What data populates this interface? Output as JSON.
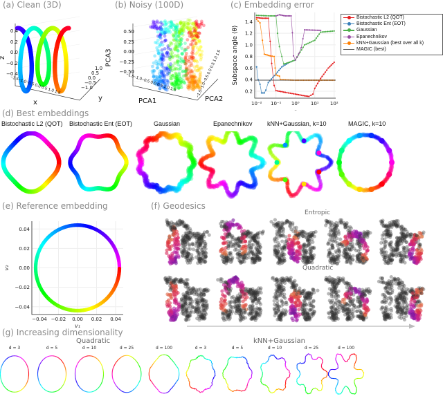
{
  "panels": {
    "a": {
      "title": "(a) Clean (3D)",
      "xlabel": "x",
      "ylabel": "y",
      "zlabel": "z",
      "zticks": [
        "0.4",
        "0.2",
        "0.0",
        "−0.2",
        "−0.4"
      ],
      "xticks": "−1.5−1.0−0.5 0.0 0.5 1.0 1.5",
      "yticks": [
        "1.0",
        "0.5",
        "0.0",
        "−0.5",
        "−1.0"
      ]
    },
    "b": {
      "title": "(b) Noisy (100D)",
      "xlabel": "PCA1",
      "ylabel": "PCA2",
      "zlabel": "PCA3",
      "zticks": [
        "0.50",
        "0.25",
        "0.00",
        "−0.25",
        "−0.50"
      ],
      "xticks": "−1.5−1.0−0.5 0.0 0.5 1.0 1.5",
      "yticks": "−1.5−1.0−0.5 0.0 0.5 1.0 1.5"
    },
    "d": {
      "title": "(d) Best embeddings",
      "items": [
        "Bistochastic L2 (QOT)",
        "Bistochastic Ent (EOT)",
        "Gaussian",
        "Epanechnikov",
        "kNN+Gaussian, k=10",
        "MAGIC, k=10"
      ]
    },
    "f": {
      "title": "(f) Geodesics",
      "row1": "Entropic",
      "row2": "Quadratic"
    },
    "g": {
      "title": "(g) Increasing dimensionality",
      "group1": "Quadratic",
      "group2": "kNN+Gaussian",
      "dims": [
        "d = 3",
        "d = 5",
        "d = 10",
        "d = 25",
        "d = 100",
        "d = 3",
        "d = 5",
        "d = 10",
        "d = 25",
        "d = 100"
      ]
    }
  },
  "chart_data": [
    {
      "id": "c",
      "type": "line",
      "title": "(c) Embedding error",
      "xlabel": "ε",
      "ylabel": "Subspace angle ⟨θ⟩",
      "xscale": "log",
      "xlim": [
        0.008,
        120
      ],
      "ylim": [
        0.08,
        1.56
      ],
      "xticks": [
        0.01,
        0.1,
        1,
        10,
        100
      ],
      "xtick_labels": [
        "10⁻²",
        "10⁻¹",
        "10⁰",
        "10¹",
        "10²"
      ],
      "yticks": [
        0.2,
        0.4,
        0.6,
        0.8,
        1.0,
        1.2,
        1.4
      ],
      "ytick_labels": [
        "0.2",
        "0.4",
        "0.6",
        "0.8",
        "1.0",
        "1.2",
        "1.4"
      ],
      "grid": true,
      "legend_position": "outside-right",
      "series": [
        {
          "name": "Bistochastic L2 (QOT)",
          "color": "#e41a1c",
          "points": [
            [
              0.01,
              1.47
            ],
            [
              0.02,
              1.46
            ],
            [
              0.04,
              1.46
            ],
            [
              0.05,
              1.06
            ],
            [
              0.06,
              0.68
            ],
            [
              0.08,
              0.3
            ],
            [
              0.1,
              0.21
            ],
            [
              0.3,
              0.18
            ],
            [
              1,
              0.15
            ],
            [
              3,
              0.12
            ],
            [
              5,
              0.11
            ],
            [
              8,
              0.15
            ],
            [
              10,
              0.25
            ],
            [
              20,
              0.42
            ],
            [
              50,
              0.6
            ],
            [
              100,
              0.7
            ]
          ]
        },
        {
          "name": "Bistochastic Ent (EOT)",
          "color": "#377eb8",
          "points": [
            [
              0.01,
              0.62
            ],
            [
              0.012,
              0.4
            ],
            [
              0.015,
              0.32
            ],
            [
              0.018,
              0.17
            ],
            [
              0.025,
              0.17
            ],
            [
              0.03,
              0.22
            ],
            [
              0.04,
              0.35
            ],
            [
              0.1,
              0.5
            ],
            [
              0.2,
              0.62
            ],
            [
              0.5,
              0.7
            ],
            [
              1,
              0.74
            ]
          ]
        },
        {
          "name": "Gaussian",
          "color": "#4daf4a",
          "points": [
            [
              0.01,
              1.51
            ],
            [
              0.05,
              1.5
            ],
            [
              0.1,
              1.5
            ],
            [
              0.12,
              1.2
            ],
            [
              0.15,
              0.97
            ],
            [
              0.2,
              0.8
            ],
            [
              0.25,
              0.67
            ],
            [
              0.5,
              0.7
            ],
            [
              1,
              0.74
            ],
            [
              3,
              1.0
            ],
            [
              10,
              1.08
            ],
            [
              20,
              1.22
            ],
            [
              100,
              1.24
            ]
          ]
        },
        {
          "name": "Epanechnikov",
          "color": "#984ea3",
          "points": [
            [
              0.1,
              1.5
            ],
            [
              0.15,
              1.52
            ],
            [
              0.3,
              1.5
            ],
            [
              0.6,
              1.5
            ],
            [
              0.7,
              1.21
            ],
            [
              0.8,
              0.81
            ],
            [
              1,
              0.74
            ],
            [
              1.5,
              0.85
            ],
            [
              2,
              0.95
            ],
            [
              3,
              1.26
            ],
            [
              20,
              1.25
            ]
          ]
        },
        {
          "name": "kNN+Gaussian (best over all k)",
          "color": "#ff7f00",
          "points": [
            [
              0.01,
              1.44
            ],
            [
              0.015,
              1.38
            ],
            [
              0.02,
              1.08
            ],
            [
              0.025,
              0.84
            ],
            [
              0.05,
              0.81
            ],
            [
              0.08,
              0.8
            ],
            [
              0.09,
              0.6
            ],
            [
              0.1,
              0.48
            ],
            [
              0.15,
              0.46
            ],
            [
              0.17,
              0.4
            ],
            [
              1,
              0.39
            ],
            [
              10,
              0.39
            ],
            [
              100,
              0.39
            ]
          ]
        },
        {
          "name": "MAGIC (best)",
          "color": "#555555",
          "points": [
            [
              0.008,
              0.39
            ],
            [
              120,
              0.39
            ]
          ],
          "markers": false
        }
      ]
    },
    {
      "id": "e",
      "type": "scatter",
      "title": "(e) Reference embedding",
      "xlabel": "v₁",
      "ylabel": "v₂",
      "xlim": [
        -0.048,
        0.048
      ],
      "ylim": [
        -0.048,
        0.048
      ],
      "xticks": [
        -0.04,
        -0.02,
        0,
        0.02,
        0.04
      ],
      "xtick_labels": [
        "−0.04",
        "−0.02",
        "0.00",
        "0.02",
        "0.04"
      ],
      "yticks": [
        -0.04,
        -0.02,
        0,
        0.02,
        0.04
      ],
      "ytick_labels": [
        "−0.04",
        "−0.02",
        "0.00",
        "0.02",
        "0.04"
      ],
      "shape": "circle",
      "radius": 0.044,
      "color_by": "angle (rainbow)"
    }
  ]
}
